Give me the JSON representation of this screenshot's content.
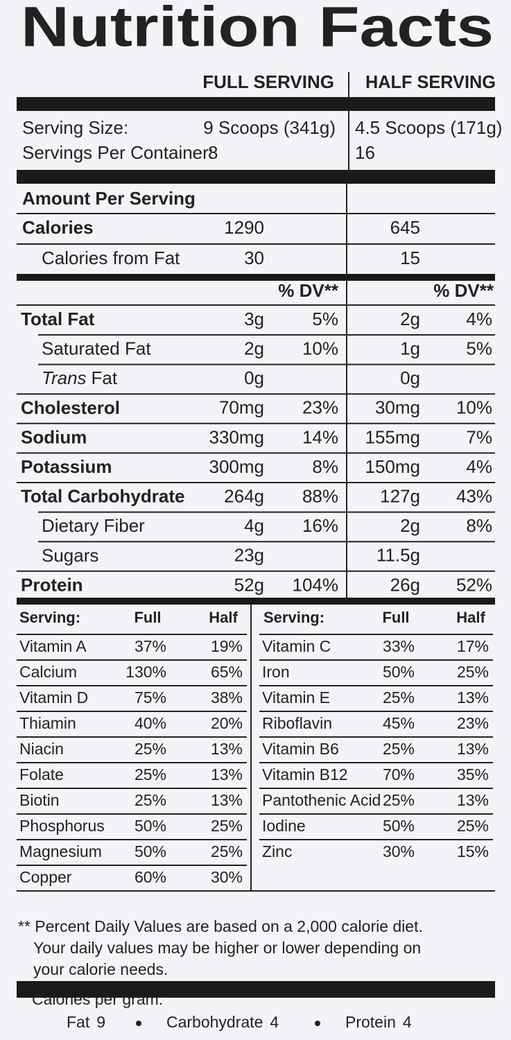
{
  "title": "Nutrition Facts",
  "columns": [
    "FULL SERVING",
    "HALF SERVING"
  ],
  "serving_size": {
    "label": "Serving Size:",
    "full": "9 Scoops (341g)",
    "half": "4.5 Scoops (171g)"
  },
  "servings_per_container": {
    "label": "Servings Per Container:",
    "full": "8",
    "half": "16"
  },
  "amount_per_serving": "Amount Per Serving",
  "calories": {
    "label": "Calories",
    "full": "1290",
    "half": "645"
  },
  "calories_from_fat": {
    "label": "Calories from Fat",
    "full": "30",
    "half": "15"
  },
  "dv_header": "% DV**",
  "nutrients": [
    {
      "name": "Total Fat",
      "full": "3g",
      "full_dv": "5%",
      "half": "2g",
      "half_dv": "4%"
    },
    {
      "name": "Saturated Fat",
      "full": "2g",
      "full_dv": "10%",
      "half": "1g",
      "half_dv": "5%"
    },
    {
      "name": "Trans",
      "name_suffix": "Fat",
      "full": "0g",
      "half": "0g"
    },
    {
      "name": "Cholesterol",
      "full": "70mg",
      "full_dv": "23%",
      "half": "30mg",
      "half_dv": "10%"
    },
    {
      "name": "Sodium",
      "full": "330mg",
      "full_dv": "14%",
      "half": "155mg",
      "half_dv": "7%"
    },
    {
      "name": "Potassium",
      "full": "300mg",
      "full_dv": "8%",
      "half": "150mg",
      "half_dv": "4%"
    },
    {
      "name": "Total Carbohydrate",
      "full": "264g",
      "full_dv": "88%",
      "half": "127g",
      "half_dv": "43%"
    },
    {
      "name": "Dietary Fiber",
      "full": "4g",
      "full_dv": "16%",
      "half": "2g",
      "half_dv": "8%"
    },
    {
      "name": "Sugars",
      "full": "23g",
      "half": "11.5g"
    },
    {
      "name": "Protein",
      "full": "52g",
      "full_dv": "104%",
      "half": "26g",
      "half_dv": "52%"
    }
  ],
  "vitamins_header": [
    "Serving:",
    "Full",
    "Half"
  ],
  "vitamins_left": [
    [
      "Vitamin A",
      "37%",
      "19%"
    ],
    [
      "Calcium",
      "130%",
      "65%"
    ],
    [
      "Vitamin D",
      "75%",
      "38%"
    ],
    [
      "Thiamin",
      "40%",
      "20%"
    ],
    [
      "Niacin",
      "25%",
      "13%"
    ],
    [
      "Folate",
      "25%",
      "13%"
    ],
    [
      "Biotin",
      "25%",
      "13%"
    ],
    [
      "Phosphorus",
      "50%",
      "25%"
    ],
    [
      "Magnesium",
      "50%",
      "25%"
    ],
    [
      "Copper",
      "60%",
      "30%"
    ]
  ],
  "vitamins_right": [
    [
      "Vitamin C",
      "33%",
      "17%"
    ],
    [
      "Iron",
      "50%",
      "25%"
    ],
    [
      "Vitamin E",
      "25%",
      "13%"
    ],
    [
      "Riboflavin",
      "45%",
      "23%"
    ],
    [
      "Vitamin B6",
      "25%",
      "13%"
    ],
    [
      "Vitamin B12",
      "70%",
      "35%"
    ],
    [
      "Pantothenic Acid",
      "25%",
      "13%"
    ],
    [
      "Iodine",
      "50%",
      "25%"
    ],
    [
      "Zinc",
      "30%",
      "15%"
    ]
  ],
  "footnote": [
    "** Percent Daily Values are based on a 2,000 calorie diet.",
    "Your daily values may be higher or lower depending on",
    "your calorie needs."
  ],
  "calories_per_gram": {
    "label": "Calories per gram:",
    "items": [
      {
        "name": "Fat",
        "value": "9"
      },
      {
        "name": "Carbohydrate",
        "value": "4"
      },
      {
        "name": "Protein",
        "value": "4"
      }
    ]
  }
}
